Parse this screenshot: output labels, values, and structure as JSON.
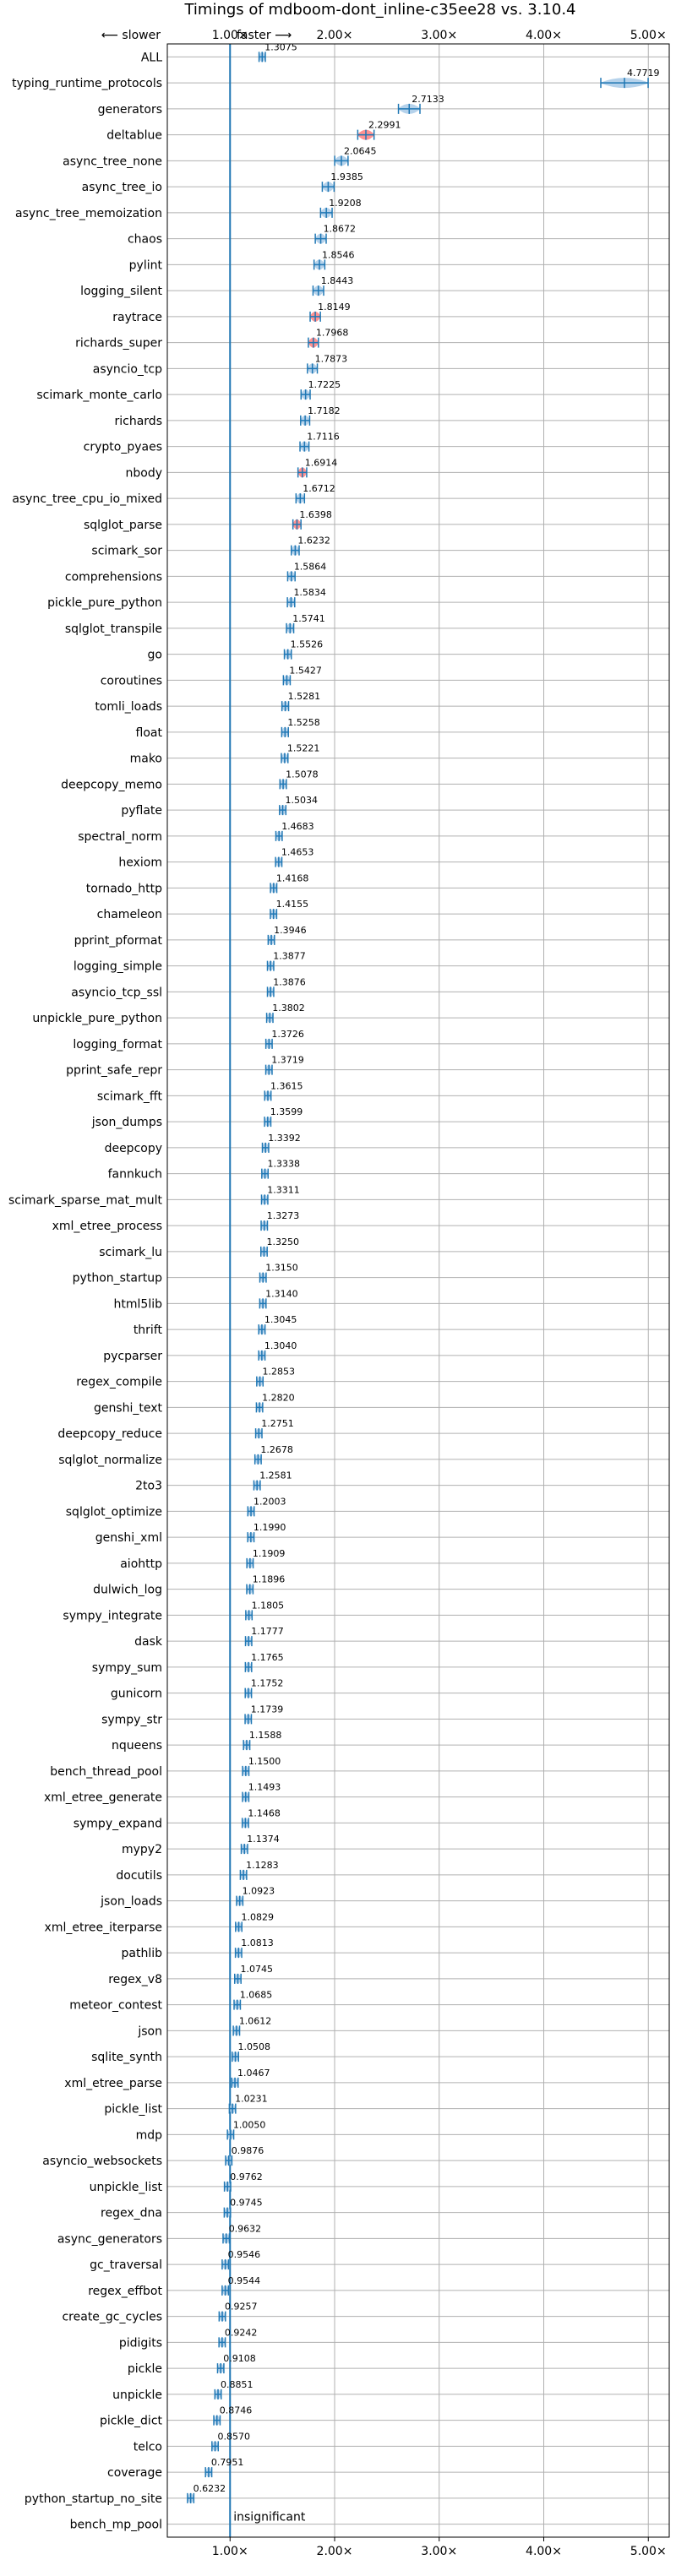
{
  "chart_data": {
    "type": "violin",
    "title": "Timings of mdboom-dont_inline-c35ee28 vs. 3.10.4",
    "direction_left": "⟵ slower",
    "direction_right": "faster ⟶",
    "x_ticks": [
      1,
      2,
      3,
      4,
      5
    ],
    "x_tick_labels": [
      "1.00×",
      "2.00×",
      "3.00×",
      "4.00×",
      "5.00×"
    ],
    "xlim": [
      0.4,
      5.2
    ],
    "reference_line": 1.0,
    "grid": true,
    "colors": {
      "faster": "#1f77b4",
      "slower": "#ff7f7f",
      "violin_fill": "#a9cbe8",
      "accent": "#1f77b4"
    },
    "insignificant_label": "insignificant",
    "benchmarks": [
      {
        "name": "ALL",
        "value": 1.3075,
        "label": "1.3075"
      },
      {
        "name": "typing_runtime_protocols",
        "value": 4.7719,
        "label": "4.7719"
      },
      {
        "name": "generators",
        "value": 2.7133,
        "label": "2.7133"
      },
      {
        "name": "deltablue",
        "value": 2.2991,
        "label": "2.2991"
      },
      {
        "name": "async_tree_none",
        "value": 2.0645,
        "label": "2.0645"
      },
      {
        "name": "async_tree_io",
        "value": 1.9385,
        "label": "1.9385"
      },
      {
        "name": "async_tree_memoization",
        "value": 1.9208,
        "label": "1.9208"
      },
      {
        "name": "chaos",
        "value": 1.8672,
        "label": "1.8672"
      },
      {
        "name": "pylint",
        "value": 1.8546,
        "label": "1.8546"
      },
      {
        "name": "logging_silent",
        "value": 1.8443,
        "label": "1.8443"
      },
      {
        "name": "raytrace",
        "value": 1.8149,
        "label": "1.8149"
      },
      {
        "name": "richards_super",
        "value": 1.7968,
        "label": "1.7968"
      },
      {
        "name": "asyncio_tcp",
        "value": 1.7873,
        "label": "1.7873"
      },
      {
        "name": "scimark_monte_carlo",
        "value": 1.7225,
        "label": "1.7225"
      },
      {
        "name": "richards",
        "value": 1.7182,
        "label": "1.7182"
      },
      {
        "name": "crypto_pyaes",
        "value": 1.7116,
        "label": "1.7116"
      },
      {
        "name": "nbody",
        "value": 1.6914,
        "label": "1.6914"
      },
      {
        "name": "async_tree_cpu_io_mixed",
        "value": 1.6712,
        "label": "1.6712"
      },
      {
        "name": "sqlglot_parse",
        "value": 1.6398,
        "label": "1.6398"
      },
      {
        "name": "scimark_sor",
        "value": 1.6232,
        "label": "1.6232"
      },
      {
        "name": "comprehensions",
        "value": 1.5864,
        "label": "1.5864"
      },
      {
        "name": "pickle_pure_python",
        "value": 1.5834,
        "label": "1.5834"
      },
      {
        "name": "sqlglot_transpile",
        "value": 1.5741,
        "label": "1.5741"
      },
      {
        "name": "go",
        "value": 1.5526,
        "label": "1.5526"
      },
      {
        "name": "coroutines",
        "value": 1.5427,
        "label": "1.5427"
      },
      {
        "name": "tomli_loads",
        "value": 1.5281,
        "label": "1.5281"
      },
      {
        "name": "float",
        "value": 1.5258,
        "label": "1.5258"
      },
      {
        "name": "mako",
        "value": 1.5221,
        "label": "1.5221"
      },
      {
        "name": "deepcopy_memo",
        "value": 1.5078,
        "label": "1.5078"
      },
      {
        "name": "pyflate",
        "value": 1.5034,
        "label": "1.5034"
      },
      {
        "name": "spectral_norm",
        "value": 1.4683,
        "label": "1.4683"
      },
      {
        "name": "hexiom",
        "value": 1.4653,
        "label": "1.4653"
      },
      {
        "name": "tornado_http",
        "value": 1.4168,
        "label": "1.4168"
      },
      {
        "name": "chameleon",
        "value": 1.4155,
        "label": "1.4155"
      },
      {
        "name": "pprint_pformat",
        "value": 1.3946,
        "label": "1.3946"
      },
      {
        "name": "logging_simple",
        "value": 1.3877,
        "label": "1.3877"
      },
      {
        "name": "asyncio_tcp_ssl",
        "value": 1.3876,
        "label": "1.3876"
      },
      {
        "name": "unpickle_pure_python",
        "value": 1.3802,
        "label": "1.3802"
      },
      {
        "name": "logging_format",
        "value": 1.3726,
        "label": "1.3726"
      },
      {
        "name": "pprint_safe_repr",
        "value": 1.3719,
        "label": "1.3719"
      },
      {
        "name": "scimark_fft",
        "value": 1.3615,
        "label": "1.3615"
      },
      {
        "name": "json_dumps",
        "value": 1.3599,
        "label": "1.3599"
      },
      {
        "name": "deepcopy",
        "value": 1.3392,
        "label": "1.3392"
      },
      {
        "name": "fannkuch",
        "value": 1.3338,
        "label": "1.3338"
      },
      {
        "name": "scimark_sparse_mat_mult",
        "value": 1.3311,
        "label": "1.3311"
      },
      {
        "name": "xml_etree_process",
        "value": 1.3273,
        "label": "1.3273"
      },
      {
        "name": "scimark_lu",
        "value": 1.325,
        "label": "1.3250"
      },
      {
        "name": "python_startup",
        "value": 1.315,
        "label": "1.3150"
      },
      {
        "name": "html5lib",
        "value": 1.314,
        "label": "1.3140"
      },
      {
        "name": "thrift",
        "value": 1.3045,
        "label": "1.3045"
      },
      {
        "name": "pycparser",
        "value": 1.304,
        "label": "1.3040"
      },
      {
        "name": "regex_compile",
        "value": 1.2853,
        "label": "1.2853"
      },
      {
        "name": "genshi_text",
        "value": 1.282,
        "label": "1.2820"
      },
      {
        "name": "deepcopy_reduce",
        "value": 1.2751,
        "label": "1.2751"
      },
      {
        "name": "sqlglot_normalize",
        "value": 1.2678,
        "label": "1.2678"
      },
      {
        "name": "2to3",
        "value": 1.2581,
        "label": "1.2581"
      },
      {
        "name": "sqlglot_optimize",
        "value": 1.2003,
        "label": "1.2003"
      },
      {
        "name": "genshi_xml",
        "value": 1.199,
        "label": "1.1990"
      },
      {
        "name": "aiohttp",
        "value": 1.1909,
        "label": "1.1909"
      },
      {
        "name": "dulwich_log",
        "value": 1.1896,
        "label": "1.1896"
      },
      {
        "name": "sympy_integrate",
        "value": 1.1805,
        "label": "1.1805"
      },
      {
        "name": "dask",
        "value": 1.1777,
        "label": "1.1777"
      },
      {
        "name": "sympy_sum",
        "value": 1.1765,
        "label": "1.1765"
      },
      {
        "name": "gunicorn",
        "value": 1.1752,
        "label": "1.1752"
      },
      {
        "name": "sympy_str",
        "value": 1.1739,
        "label": "1.1739"
      },
      {
        "name": "nqueens",
        "value": 1.1588,
        "label": "1.1588"
      },
      {
        "name": "bench_thread_pool",
        "value": 1.15,
        "label": "1.1500"
      },
      {
        "name": "xml_etree_generate",
        "value": 1.1493,
        "label": "1.1493"
      },
      {
        "name": "sympy_expand",
        "value": 1.1468,
        "label": "1.1468"
      },
      {
        "name": "mypy2",
        "value": 1.1374,
        "label": "1.1374"
      },
      {
        "name": "docutils",
        "value": 1.1283,
        "label": "1.1283"
      },
      {
        "name": "json_loads",
        "value": 1.0923,
        "label": "1.0923"
      },
      {
        "name": "xml_etree_iterparse",
        "value": 1.0829,
        "label": "1.0829"
      },
      {
        "name": "pathlib",
        "value": 1.0813,
        "label": "1.0813"
      },
      {
        "name": "regex_v8",
        "value": 1.0745,
        "label": "1.0745"
      },
      {
        "name": "meteor_contest",
        "value": 1.0685,
        "label": "1.0685"
      },
      {
        "name": "json",
        "value": 1.0612,
        "label": "1.0612"
      },
      {
        "name": "sqlite_synth",
        "value": 1.0508,
        "label": "1.0508"
      },
      {
        "name": "xml_etree_parse",
        "value": 1.0467,
        "label": "1.0467"
      },
      {
        "name": "pickle_list",
        "value": 1.0231,
        "label": "1.0231"
      },
      {
        "name": "mdp",
        "value": 1.005,
        "label": "1.0050"
      },
      {
        "name": "asyncio_websockets",
        "value": 0.9876,
        "label": "0.9876"
      },
      {
        "name": "unpickle_list",
        "value": 0.9762,
        "label": "0.9762"
      },
      {
        "name": "regex_dna",
        "value": 0.9745,
        "label": "0.9745"
      },
      {
        "name": "async_generators",
        "value": 0.9632,
        "label": "0.9632"
      },
      {
        "name": "gc_traversal",
        "value": 0.9546,
        "label": "0.9546"
      },
      {
        "name": "regex_effbot",
        "value": 0.9544,
        "label": "0.9544"
      },
      {
        "name": "create_gc_cycles",
        "value": 0.9257,
        "label": "0.9257"
      },
      {
        "name": "pidigits",
        "value": 0.9242,
        "label": "0.9242"
      },
      {
        "name": "pickle",
        "value": 0.9108,
        "label": "0.9108"
      },
      {
        "name": "unpickle",
        "value": 0.8851,
        "label": "0.8851"
      },
      {
        "name": "pickle_dict",
        "value": 0.8746,
        "label": "0.8746"
      },
      {
        "name": "telco",
        "value": 0.857,
        "label": "0.8570"
      },
      {
        "name": "coverage",
        "value": 0.7951,
        "label": "0.7951"
      },
      {
        "name": "python_startup_no_site",
        "value": 0.6232,
        "label": "0.6232"
      },
      {
        "name": "bench_mp_pool",
        "value": null,
        "label": ""
      }
    ]
  }
}
